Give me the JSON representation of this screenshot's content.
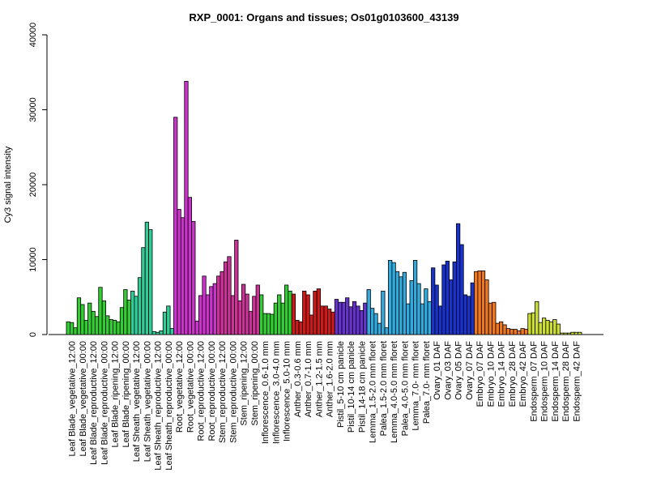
{
  "chart_data": {
    "type": "bar",
    "title": "RXP_0001: Organs and tissues; Os01g0103600_43139",
    "xlabel": "",
    "ylabel": "Cy3 signal intensity",
    "ylim": [
      0,
      40000
    ],
    "yticks": [
      0,
      10000,
      20000,
      30000,
      40000
    ],
    "grid": false,
    "groups": [
      {
        "label": "Leaf Blade_vegetative_12:00",
        "color": "#33cc33",
        "values": [
          1700,
          1600,
          900
        ]
      },
      {
        "label": "Leaf Blade_vegetative_00:00",
        "color": "#33cc33",
        "values": [
          4900,
          4000,
          1900
        ]
      },
      {
        "label": "Leaf Blade_reproductive_12:00",
        "color": "#33cc33",
        "values": [
          4200,
          3100,
          2400
        ]
      },
      {
        "label": "Leaf Blade_reproductive_00:00",
        "color": "#33cc33",
        "values": [
          6300,
          4500,
          2500
        ]
      },
      {
        "label": "Leaf Blade_ripening_12:00",
        "color": "#33cc33",
        "values": [
          2000,
          1900,
          1700
        ]
      },
      {
        "label": "Leaf Blade_ripening_00:00",
        "color": "#33cc33",
        "values": [
          3600,
          6000,
          4600
        ]
      },
      {
        "label": "Leaf Sheath_vegetative_12:00",
        "color": "#33cc99",
        "values": [
          5800,
          5100,
          7600
        ]
      },
      {
        "label": "Leaf Sheath_vegetative_00:00",
        "color": "#33cc99",
        "values": [
          11600,
          15000,
          14000
        ]
      },
      {
        "label": "Leaf Sheath_reproductive_12:00",
        "color": "#33cc99",
        "values": [
          400,
          300,
          500
        ]
      },
      {
        "label": "Leaf Sheath_reproductive_00:00",
        "color": "#33cc99",
        "values": [
          3000,
          3800,
          800
        ]
      },
      {
        "label": "Root_vegetative_12:00",
        "color": "#cc33cc",
        "values": [
          29000,
          16700,
          15600
        ]
      },
      {
        "label": "Root_vegetative_00:00",
        "color": "#cc33cc",
        "values": [
          33800,
          18300,
          15100
        ]
      },
      {
        "label": "Root_reproductive_12:00",
        "color": "#cc33cc",
        "values": [
          1800,
          5200,
          7800
        ]
      },
      {
        "label": "Root_reproductive_00:00",
        "color": "#cc33cc",
        "values": [
          5300,
          6400,
          6800
        ]
      },
      {
        "label": "Stem_reproductive_12:00",
        "color": "#cc3399",
        "values": [
          7800,
          8400,
          9700
        ]
      },
      {
        "label": "Stem_reproductive_00:00",
        "color": "#cc3399",
        "values": [
          10400,
          5200,
          12600
        ]
      },
      {
        "label": "Stem_ripening_12:00",
        "color": "#cc3399",
        "values": [
          4500,
          6700,
          5400
        ]
      },
      {
        "label": "Stem_ripening_00:00",
        "color": "#cc3399",
        "values": [
          3100,
          5100,
          6600
        ]
      },
      {
        "label": "Inflorescence_0.6-1.0 mm",
        "color": "#33cc33",
        "values": [
          5300,
          2800,
          2800
        ]
      },
      {
        "label": "Inflorescence_3.0-4.0 mm",
        "color": "#33cc33",
        "values": [
          2700,
          4200,
          5300
        ]
      },
      {
        "label": "Inflorescence_5.0-10 mm",
        "color": "#33cc33",
        "values": [
          4200,
          6600,
          5800
        ]
      },
      {
        "label": "Anther_0.3-0.6 mm",
        "color": "#cc1a1a",
        "values": [
          5400,
          1900,
          1700
        ]
      },
      {
        "label": "Anther_0.7-1.0 mm",
        "color": "#cc1a1a",
        "values": [
          5800,
          5300,
          2600
        ]
      },
      {
        "label": "Anther_1.2-1.5 mm",
        "color": "#cc1a1a",
        "values": [
          5800,
          6100,
          3800
        ]
      },
      {
        "label": "Anther_1.6-2.0 mm",
        "color": "#cc1a1a",
        "values": [
          3800,
          3400,
          3000
        ]
      },
      {
        "label": "Pistil_5-10 cm panicle",
        "color": "#6633cc",
        "values": [
          4700,
          4300,
          4300
        ]
      },
      {
        "label": "Pistil_10-14 cm panicle",
        "color": "#6633cc",
        "values": [
          4900,
          3700,
          4400
        ]
      },
      {
        "label": "Pistil_14-18 cm panicle",
        "color": "#6633cc",
        "values": [
          3800,
          3200,
          4200
        ]
      },
      {
        "label": "Lemma_1.5-2.0 mm floret",
        "color": "#33aadd",
        "values": [
          6000,
          3500,
          2800
        ]
      },
      {
        "label": "Palea_1.5-2.0 mm floret",
        "color": "#33aadd",
        "values": [
          1500,
          5800,
          900
        ]
      },
      {
        "label": "Lemma_4.0-5.0 mm floret",
        "color": "#33aadd",
        "values": [
          9900,
          9600,
          8400
        ]
      },
      {
        "label": "Palea_4.0-5.0 mm floret",
        "color": "#33aadd",
        "values": [
          7700,
          8300,
          4100
        ]
      },
      {
        "label": "Lemma_7.0- mm floret",
        "color": "#33aadd",
        "values": [
          7200,
          9900,
          6800
        ]
      },
      {
        "label": "Palea_7.0- mm floret",
        "color": "#33aadd",
        "values": [
          4100,
          6100,
          4400
        ]
      },
      {
        "label": "Ovary_01 DAF",
        "color": "#1a33cc",
        "values": [
          8900,
          6600,
          3800
        ]
      },
      {
        "label": "Ovary_03 DAF",
        "color": "#1a33cc",
        "values": [
          9300,
          9800,
          7300
        ]
      },
      {
        "label": "Ovary_05 DAF",
        "color": "#1a33cc",
        "values": [
          9700,
          14800,
          12000
        ]
      },
      {
        "label": "Ovary_07 DAF",
        "color": "#1a33cc",
        "values": [
          5300,
          5100,
          6900
        ]
      },
      {
        "label": "Embryo_07 DAF",
        "color": "#ee7722",
        "values": [
          8400,
          8500,
          8500
        ]
      },
      {
        "label": "Embryo_10 DAF",
        "color": "#ee7722",
        "values": [
          7300,
          4200,
          4300
        ]
      },
      {
        "label": "Embryo_14 DAF",
        "color": "#ee7722",
        "values": [
          1500,
          1700,
          1300
        ]
      },
      {
        "label": "Embryo_28 DAF",
        "color": "#ee7722",
        "values": [
          800,
          700,
          700
        ]
      },
      {
        "label": "Embryo_42 DAF",
        "color": "#ee7722",
        "values": [
          500,
          800,
          700
        ]
      },
      {
        "label": "Endosperm_07 DAF",
        "color": "#ccdd33",
        "values": [
          2800,
          2900,
          4400
        ]
      },
      {
        "label": "Endosperm_10 DAF",
        "color": "#ccdd33",
        "values": [
          1600,
          2200,
          1900
        ]
      },
      {
        "label": "Endosperm_14 DAF",
        "color": "#ccdd33",
        "values": [
          1700,
          2000,
          1400
        ]
      },
      {
        "label": "Endosperm_28 DAF",
        "color": "#ccdd33",
        "values": [
          200,
          200,
          200
        ]
      },
      {
        "label": "Endosperm_42 DAF",
        "color": "#ccdd33",
        "values": [
          300,
          300,
          300
        ]
      }
    ]
  }
}
